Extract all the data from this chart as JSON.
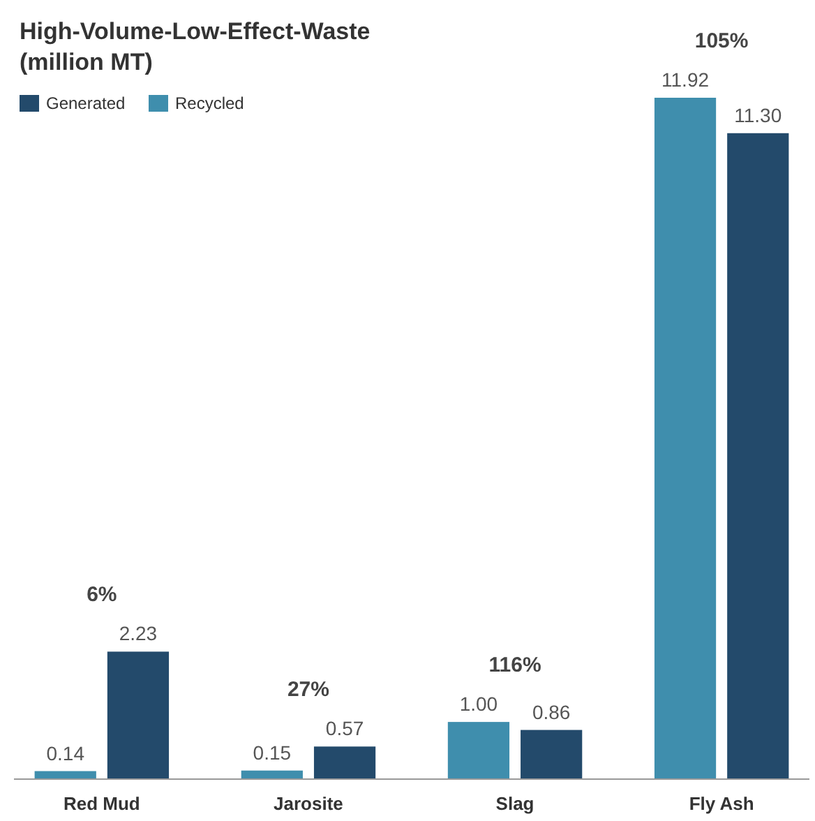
{
  "chart_data": {
    "type": "bar",
    "title": "High-Volume-Low-Effect-Waste",
    "subtitle": "(million MT)",
    "categories": [
      "Red Mud",
      "Jarosite",
      "Slag",
      "Fly Ash"
    ],
    "series": [
      {
        "name": "Recycled",
        "color": "#3f8ead",
        "values": [
          0.14,
          0.15,
          1.0,
          11.92
        ],
        "value_labels": [
          "0.14",
          "0.15",
          "1.00",
          "11.92"
        ]
      },
      {
        "name": "Generated",
        "color": "#234a6b",
        "values": [
          2.23,
          0.57,
          0.86,
          11.3
        ],
        "value_labels": [
          "2.23",
          "0.57",
          "0.86",
          "11.30"
        ]
      }
    ],
    "annotations": [
      "6%",
      "27%",
      "116%",
      "105%"
    ],
    "relative": false,
    "legend": "top left",
    "grid": false
  }
}
